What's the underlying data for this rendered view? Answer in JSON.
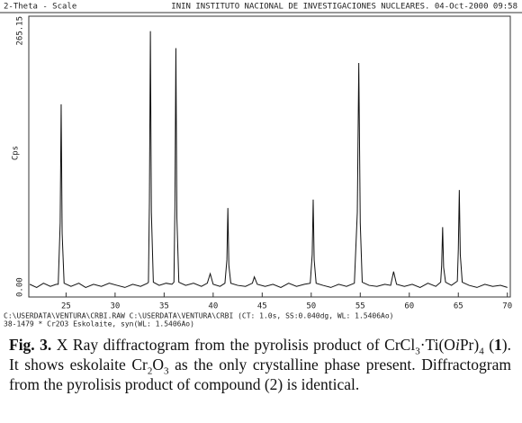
{
  "chart_data": {
    "type": "line",
    "header_left": "2-Theta - Scale",
    "header_right": "ININ INSTITUTO NACIONAL DE INVESTIGACIONES NUCLEARES. 04-Oct-2000 09:58",
    "ylabel": "Cps",
    "footer": [
      "C:\\USERDATA\\VENTURA\\CRBI.RAW C:\\USERDATA\\VENTURA\\CRBI (CT: 1.0s, SS:0.040dg, WL: 1.5406Ao)",
      "38-1479 * Cr2O3 Eskolaite, syn(WL: 1.5406Ao)"
    ],
    "color": "#111111",
    "x": [
      21.3,
      22.0,
      22.7,
      23.4,
      24.0,
      24.2,
      24.4,
      24.5,
      24.6,
      24.8,
      25.5,
      26.3,
      27.0,
      27.8,
      28.6,
      29.4,
      30.2,
      31.0,
      31.8,
      32.6,
      33.3,
      33.4,
      33.5,
      33.6,
      33.7,
      33.9,
      34.5,
      35.2,
      35.8,
      36.0,
      36.1,
      36.2,
      36.3,
      36.5,
      37.2,
      38.0,
      38.8,
      39.4,
      39.7,
      40.0,
      40.7,
      41.2,
      41.4,
      41.5,
      41.6,
      41.8,
      42.5,
      43.3,
      44.0,
      44.2,
      44.5,
      45.3,
      46.1,
      46.9,
      47.7,
      48.5,
      49.3,
      49.9,
      50.1,
      50.2,
      50.3,
      50.5,
      51.2,
      52.0,
      52.8,
      53.6,
      54.4,
      54.7,
      54.85,
      55.0,
      55.2,
      55.9,
      56.7,
      57.5,
      58.1,
      58.4,
      58.7,
      59.5,
      60.3,
      61.1,
      61.9,
      62.7,
      63.2,
      63.3,
      63.4,
      63.5,
      63.7,
      64.3,
      64.9,
      65.0,
      65.1,
      65.2,
      65.4,
      66.1,
      66.9,
      67.7,
      68.5,
      69.3,
      70.0
    ],
    "values": [
      12,
      9,
      13,
      10,
      12,
      12,
      70,
      182,
      60,
      13,
      10,
      13,
      9,
      12,
      10,
      13,
      11,
      9,
      12,
      10,
      13,
      14,
      90,
      251,
      80,
      14,
      11,
      13,
      12,
      14,
      85,
      235,
      75,
      14,
      11,
      13,
      10,
      13,
      22,
      12,
      10,
      13,
      35,
      84,
      30,
      13,
      11,
      10,
      13,
      19,
      12,
      10,
      12,
      9,
      13,
      10,
      12,
      13,
      40,
      92,
      35,
      13,
      11,
      9,
      12,
      10,
      13,
      80,
      221,
      70,
      14,
      11,
      10,
      12,
      11,
      24,
      12,
      10,
      12,
      9,
      13,
      10,
      14,
      30,
      66,
      28,
      14,
      11,
      15,
      45,
      101,
      40,
      14,
      11,
      9,
      12,
      10,
      11,
      9
    ],
    "xlim": [
      21.2,
      70.3
    ],
    "xticks": [
      25,
      30,
      35,
      40,
      45,
      50,
      55,
      60,
      65,
      70
    ],
    "ylim": [
      0,
      265.15
    ],
    "yticks": [
      {
        "value": 0,
        "label": "0.00"
      },
      {
        "value": 265.15,
        "label": "265.15"
      }
    ]
  },
  "caption": [
    "Fig. 3.",
    " X Ray diffractogram from the pyrolisis product of CrCl",
    "3",
    "·Ti(O",
    "i",
    "Pr)",
    "4",
    " (",
    "1",
    "). It shows eskolaite Cr",
    "2",
    "O",
    "3",
    " as the only crystalline phase present. Diffractogram from the pyrolisis product of compound (2) is identical."
  ]
}
